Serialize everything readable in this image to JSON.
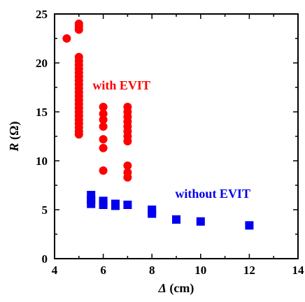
{
  "chart_data": {
    "type": "scatter",
    "title": "",
    "xlabel": "Δ (cm)",
    "xlabel_var": "Δ",
    "xlabel_unit": " (cm)",
    "ylabel": "R (Ω)",
    "ylabel_var": "R",
    "ylabel_unit": " (Ω)",
    "xlim": [
      4,
      14
    ],
    "ylim": [
      0,
      25
    ],
    "xticks": [
      4,
      6,
      8,
      10,
      12,
      14
    ],
    "yticks": [
      0,
      5,
      10,
      15,
      20,
      25
    ],
    "grid": false,
    "legend": "none",
    "series": [
      {
        "marker": "circle",
        "color": "#ff0000",
        "points": [
          [
            4.5,
            22.5
          ],
          [
            5.0,
            24.0
          ],
          [
            5.0,
            23.7
          ],
          [
            5.0,
            23.4
          ],
          [
            5.0,
            20.6
          ],
          [
            5.0,
            20.2
          ],
          [
            5.0,
            19.8
          ],
          [
            5.0,
            19.4
          ],
          [
            5.0,
            19.0
          ],
          [
            5.0,
            18.6
          ],
          [
            5.0,
            18.2
          ],
          [
            5.0,
            17.8
          ],
          [
            5.0,
            17.4
          ],
          [
            5.0,
            17.0
          ],
          [
            5.0,
            16.6
          ],
          [
            5.0,
            16.2
          ],
          [
            5.0,
            15.8
          ],
          [
            5.0,
            15.4
          ],
          [
            5.0,
            15.0
          ],
          [
            5.0,
            14.6
          ],
          [
            5.0,
            14.2
          ],
          [
            5.0,
            13.8
          ],
          [
            5.0,
            13.4
          ],
          [
            5.0,
            13.0
          ],
          [
            5.0,
            12.7
          ],
          [
            6.0,
            15.5
          ],
          [
            6.0,
            14.8
          ],
          [
            6.0,
            14.2
          ],
          [
            6.0,
            13.5
          ],
          [
            6.0,
            12.2
          ],
          [
            6.0,
            11.3
          ],
          [
            6.0,
            9.0
          ],
          [
            7.0,
            15.5
          ],
          [
            7.0,
            15.0
          ],
          [
            7.0,
            14.5
          ],
          [
            7.0,
            14.0
          ],
          [
            7.0,
            13.5
          ],
          [
            7.0,
            13.0
          ],
          [
            7.0,
            12.5
          ],
          [
            7.0,
            12.0
          ],
          [
            7.0,
            9.5
          ],
          [
            7.0,
            8.8
          ],
          [
            7.0,
            8.3
          ]
        ]
      },
      {
        "marker": "square",
        "color": "#0000ee",
        "points": [
          [
            5.5,
            6.5
          ],
          [
            5.5,
            6.0
          ],
          [
            5.5,
            5.6
          ],
          [
            6.0,
            5.9
          ],
          [
            6.0,
            5.5
          ],
          [
            6.5,
            5.6
          ],
          [
            6.5,
            5.4
          ],
          [
            7.0,
            5.5
          ],
          [
            8.0,
            5.0
          ],
          [
            8.0,
            4.6
          ],
          [
            9.0,
            4.0
          ],
          [
            10.0,
            3.8
          ],
          [
            12.0,
            3.4
          ]
        ]
      }
    ],
    "annotations": [
      {
        "text": "with EVIT",
        "color": "#ff0000",
        "at": [
          6.75,
          17.3
        ]
      },
      {
        "text": "without EVIT",
        "color": "#0000ee",
        "at": [
          10.5,
          6.2
        ]
      }
    ]
  }
}
